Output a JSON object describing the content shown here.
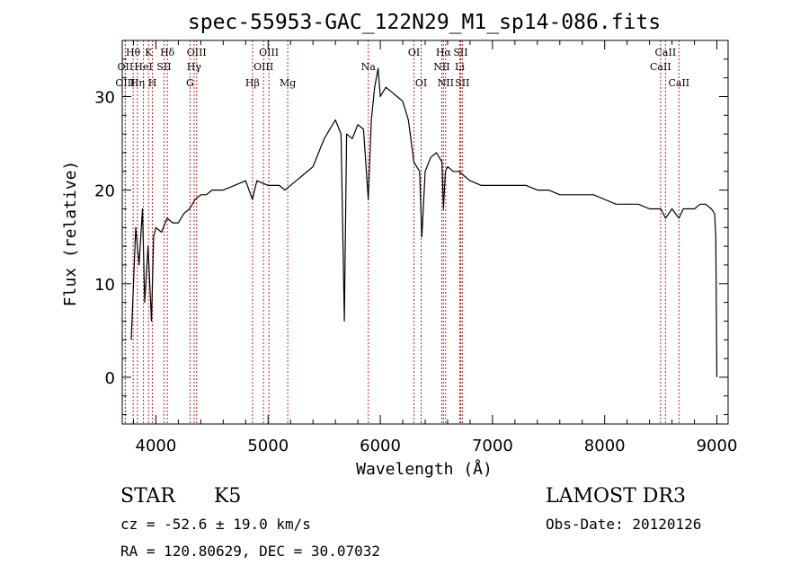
{
  "chart_data": {
    "type": "line",
    "title": "spec-55953-GAC_122N29_M1_sp14-086.fits",
    "xlabel": "Wavelength (Å)",
    "ylabel": "Flux (relative)",
    "xlim": [
      3700,
      9100
    ],
    "ylim": [
      -5,
      36
    ],
    "xticks": [
      4000,
      5000,
      6000,
      7000,
      8000,
      9000
    ],
    "xtick_labels": [
      "4000",
      "5000",
      "6000",
      "7000",
      "8000",
      "9000"
    ],
    "yticks": [
      0,
      10,
      20,
      30
    ],
    "ytick_labels": [
      "0",
      "10",
      "20",
      "30"
    ],
    "grid": false,
    "series": [
      {
        "color": "#000000",
        "x": [
          3780,
          3800,
          3820,
          3850,
          3880,
          3900,
          3930,
          3960,
          3980,
          4000,
          4050,
          4100,
          4150,
          4200,
          4250,
          4300,
          4350,
          4400,
          4450,
          4500,
          4600,
          4700,
          4800,
          4860,
          4900,
          5000,
          5100,
          5150,
          5200,
          5250,
          5300,
          5400,
          5450,
          5500,
          5550,
          5600,
          5650,
          5680,
          5700,
          5750,
          5800,
          5850,
          5893,
          5920,
          5950,
          5980,
          6000,
          6050,
          6100,
          6150,
          6200,
          6250,
          6300,
          6350,
          6370,
          6400,
          6450,
          6500,
          6550,
          6563,
          6580,
          6600,
          6650,
          6700,
          6750,
          6800,
          6900,
          7000,
          7100,
          7200,
          7300,
          7400,
          7500,
          7600,
          7700,
          7800,
          7900,
          8000,
          8100,
          8200,
          8300,
          8400,
          8450,
          8500,
          8542,
          8600,
          8662,
          8700,
          8800,
          8850,
          8900,
          8950,
          8980,
          8990,
          9000
        ],
        "y": [
          4,
          10,
          16,
          12,
          18,
          8,
          14,
          6,
          15,
          16,
          15.5,
          17,
          16.5,
          16.5,
          17.5,
          18,
          19,
          19.5,
          19.5,
          20,
          20,
          20.5,
          21,
          19,
          21,
          20.5,
          20.5,
          20,
          20.5,
          21,
          21.5,
          22.5,
          24,
          25.5,
          26.5,
          27.5,
          26,
          6,
          26,
          25.5,
          27,
          26.5,
          19,
          27.5,
          31,
          33,
          30,
          31,
          30.5,
          30,
          29.5,
          27.5,
          23,
          22,
          15,
          22,
          23.5,
          24,
          23,
          18,
          22,
          22.5,
          22,
          22,
          21.5,
          21,
          20.5,
          20.5,
          20.5,
          20.5,
          20.5,
          20,
          20,
          19.5,
          19.5,
          19.5,
          19.5,
          19,
          18.5,
          18.5,
          18.5,
          18,
          18,
          18,
          17,
          18,
          17,
          18,
          18,
          18.5,
          18.5,
          18,
          17.5,
          15,
          0
        ]
      }
    ],
    "lines": [
      {
        "x": 3797,
        "label": "Hθ",
        "row": 1
      },
      {
        "x": 3835,
        "label": "Hη",
        "row": 3
      },
      {
        "x": 3727,
        "label": "OII",
        "row": 2
      },
      {
        "x": 3727,
        "label": "OIII",
        "row": 3
      },
      {
        "x": 3889,
        "label": "HeI",
        "row": 2
      },
      {
        "x": 3934,
        "label": "K",
        "row": 1
      },
      {
        "x": 3969,
        "label": "H",
        "row": 3
      },
      {
        "x": 4072,
        "label": "SII",
        "row": 2
      },
      {
        "x": 4102,
        "label": "Hδ",
        "row": 1
      },
      {
        "x": 4304,
        "label": "G",
        "row": 3
      },
      {
        "x": 4340,
        "label": "Hγ",
        "row": 2
      },
      {
        "x": 4363,
        "label": "OIII",
        "row": 1
      },
      {
        "x": 4861,
        "label": "Hβ",
        "row": 3
      },
      {
        "x": 4959,
        "label": "OIII",
        "row": 2
      },
      {
        "x": 5007,
        "label": "OIII",
        "row": 1
      },
      {
        "x": 5175,
        "label": "Mg",
        "row": 3
      },
      {
        "x": 5893,
        "label": "Na",
        "row": 2
      },
      {
        "x": 6300,
        "label": "OI",
        "row": 1
      },
      {
        "x": 6364,
        "label": "OI",
        "row": 3
      },
      {
        "x": 6548,
        "label": "NII",
        "row": 2
      },
      {
        "x": 6563,
        "label": "Hα",
        "row": 1
      },
      {
        "x": 6583,
        "label": "NII",
        "row": 3
      },
      {
        "x": 6708,
        "label": "Li",
        "row": 2
      },
      {
        "x": 6716,
        "label": "SII",
        "row": 1
      },
      {
        "x": 6731,
        "label": "SII",
        "row": 3
      },
      {
        "x": 8498,
        "label": "CaII",
        "row": 2
      },
      {
        "x": 8542,
        "label": "CaII",
        "row": 1
      },
      {
        "x": 8662,
        "label": "CaII",
        "row": 3
      }
    ],
    "line_color": "#cc2222"
  },
  "info": {
    "class": "STAR",
    "subclass": "K5",
    "survey": "LAMOST DR3",
    "cz": "cz = -52.6 ± 19.0 km/s",
    "obsdate": "Obs-Date: 20120126",
    "coords": "RA = 120.80629, DEC =  30.07032"
  }
}
